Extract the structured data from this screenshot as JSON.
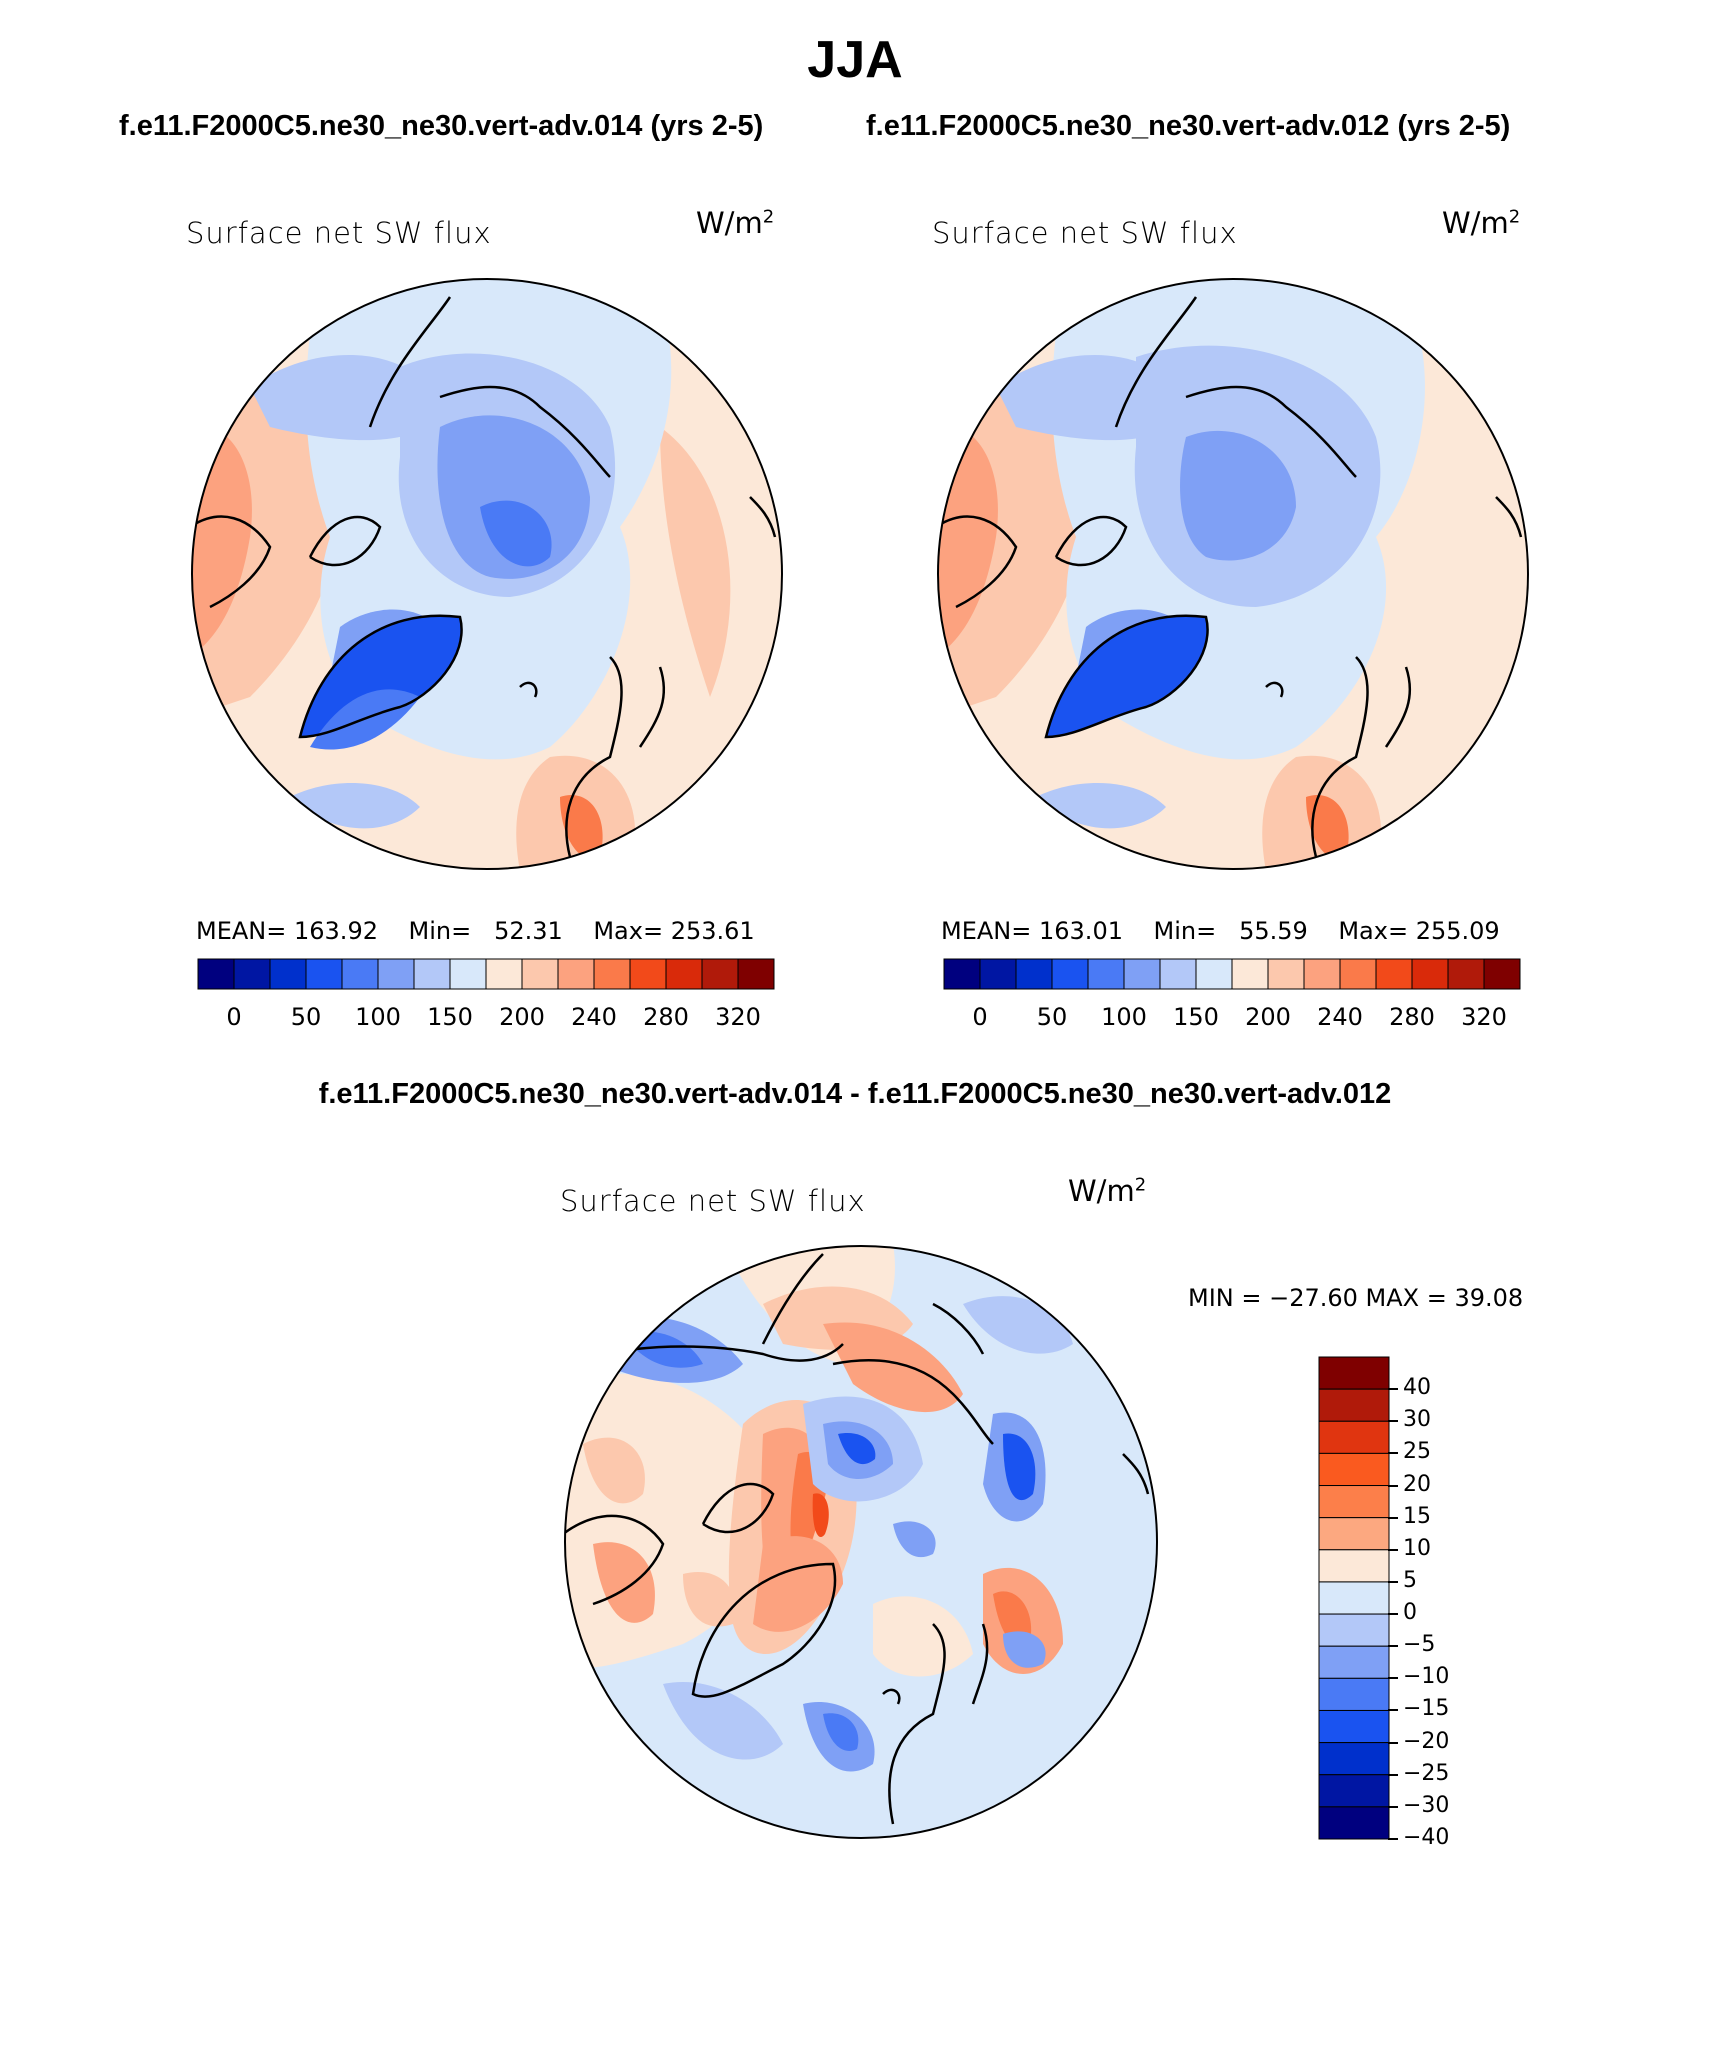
{
  "title": "JJA",
  "panels": [
    {
      "case": "f.e11.F2000C5.ne30_ne30.vert-adv.014 (yrs 2-5)",
      "variable": "Surface net SW flux",
      "units_base": "W/m",
      "units_exp": "2",
      "stats": {
        "mean_label": "MEAN=",
        "mean": "163.92",
        "min_label": "Min=",
        "min": "52.31",
        "max_label": "Max=",
        "max": "253.61"
      }
    },
    {
      "case": "f.e11.F2000C5.ne30_ne30.vert-adv.012 (yrs 2-5)",
      "variable": "Surface net SW flux",
      "units_base": "W/m",
      "units_exp": "2",
      "stats": {
        "mean_label": "MEAN=",
        "mean": "163.01",
        "min_label": "Min=",
        "min": "55.59",
        "max_label": "Max=",
        "max": "255.09"
      }
    }
  ],
  "difference": {
    "title": "f.e11.F2000C5.ne30_ne30.vert-adv.014 - f.e11.F2000C5.ne30_ne30.vert-adv.012",
    "variable": "Surface net SW flux",
    "units_base": "W/m",
    "units_exp": "2",
    "minmax": "MIN = −27.60 MAX =   39.08"
  },
  "colorbar_abs": {
    "colors": [
      "#00007f",
      "#0016a3",
      "#0030cc",
      "#1a53f0",
      "#4a7af5",
      "#7fa0f5",
      "#b3c8f8",
      "#d8e8fa",
      "#fce8d8",
      "#fcc8ad",
      "#fca27f",
      "#fa7a4a",
      "#f24a1a",
      "#d92a0a",
      "#b01a0a",
      "#7f0000"
    ],
    "tick_labels": [
      "0",
      "50",
      "100",
      "150",
      "200",
      "240",
      "280",
      "320"
    ]
  },
  "colorbar_diff": {
    "colors": [
      "#7f0000",
      "#b01a0a",
      "#e03510",
      "#fa5a1f",
      "#fc7f4a",
      "#fca880",
      "#fce8d8",
      "#d8e8fa",
      "#b3c8f8",
      "#7fa0f5",
      "#4a7af5",
      "#1a53f0",
      "#0030cc",
      "#0016a3",
      "#00007f"
    ],
    "tick_labels": [
      "40",
      "30",
      "25",
      "20",
      "15",
      "10",
      "5",
      "0",
      "−5",
      "−10",
      "−15",
      "−20",
      "−25",
      "−30",
      "−40"
    ]
  }
}
